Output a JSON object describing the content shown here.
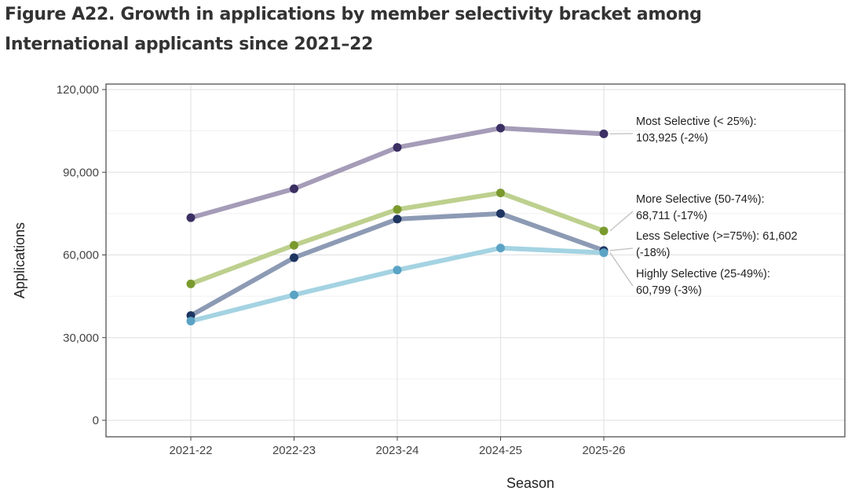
{
  "figure": {
    "title_line1": "Figure A22. Growth in applications by member selectivity bracket among",
    "title_line2": "International applicants since 2021–22"
  },
  "chart_data": {
    "type": "line",
    "xlabel": "Season",
    "ylabel": "Applications",
    "categories": [
      "2021-22",
      "2022-23",
      "2023-24",
      "2024-25",
      "2025-26"
    ],
    "ylim": [
      0,
      120000
    ],
    "yticks": [
      0,
      30000,
      60000,
      90000,
      120000
    ],
    "ytick_labels": [
      "0",
      "30,000",
      "60,000",
      "90,000",
      "120,000"
    ],
    "grid": true,
    "legend": "none",
    "series": [
      {
        "name": "Most Selective (< 25%)",
        "values": [
          73500,
          84000,
          99000,
          106000,
          103925
        ],
        "line_color": "#a59cb8",
        "point_color": "#3b2f63",
        "annotation": [
          "Most Selective (< 25%):",
          "103,925 (-2%)"
        ]
      },
      {
        "name": "More Selective (50-74%)",
        "values": [
          49500,
          63500,
          76500,
          82500,
          68711
        ],
        "line_color": "#bdd08e",
        "point_color": "#7a9a2e",
        "annotation": [
          "More Selective (50-74%):",
          "68,711 (-17%)"
        ]
      },
      {
        "name": "Less Selective (>=75%)",
        "values": [
          38000,
          59000,
          73000,
          75000,
          61602
        ],
        "line_color": "#8c9ab4",
        "point_color": "#1e3561",
        "annotation": [
          "Less Selective (>=75%): 61,602",
          "(-18%)"
        ]
      },
      {
        "name": "Highly Selective (25-49%)",
        "values": [
          36000,
          45500,
          54500,
          62500,
          60799
        ],
        "line_color": "#a4d3e2",
        "point_color": "#5aa3c4",
        "annotation": [
          "Highly Selective (25-49%):",
          "60,799 (-3%)"
        ]
      }
    ]
  }
}
